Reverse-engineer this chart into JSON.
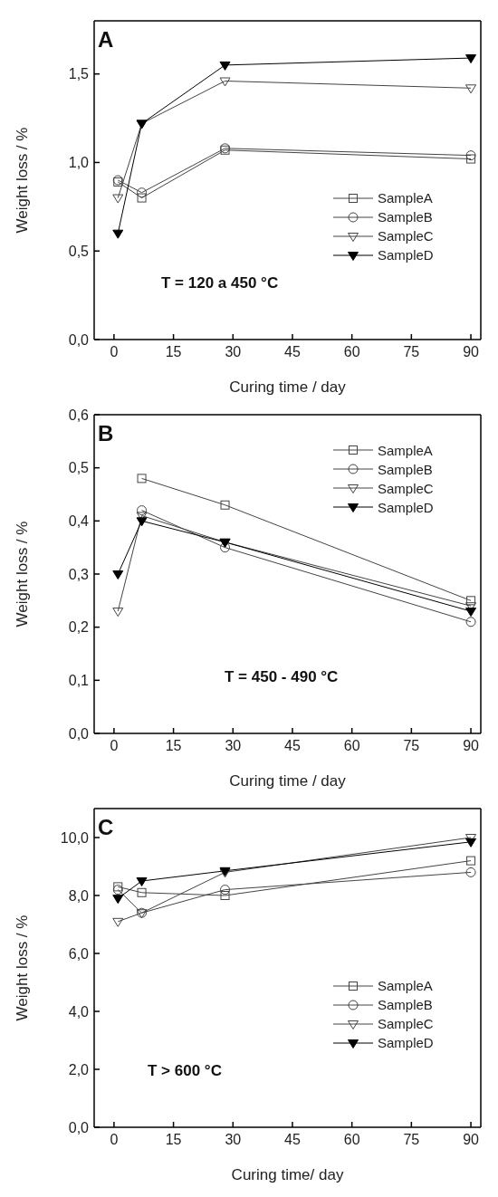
{
  "chart_data": [
    {
      "type": "line",
      "annotations": [
        "A",
        "T = 120 a 450 °C"
      ],
      "xlabel": "Curing time / day",
      "ylabel": "Weight loss /  %",
      "x": [
        1,
        7,
        28,
        90
      ],
      "xlim": [
        -5,
        92.5
      ],
      "xticks": [
        0,
        15,
        30,
        45,
        60,
        75,
        90
      ],
      "ylim": [
        0,
        1.8
      ],
      "yticks": [
        {
          "value": 0,
          "label": "0,0"
        },
        {
          "value": 0.5,
          "label": "0,5"
        },
        {
          "value": 1,
          "label": "1,0"
        },
        {
          "value": 1.5,
          "label": "1,5"
        }
      ],
      "legend": "right",
      "grid": false,
      "line_style": "solid",
      "series": [
        {
          "name": "SampleA",
          "color": "#444444",
          "marker": "square",
          "values": [
            0.89,
            0.8,
            1.07,
            1.02
          ]
        },
        {
          "name": "SampleB",
          "color": "#444444",
          "marker": "circle",
          "values": [
            0.9,
            0.83,
            1.08,
            1.04
          ]
        },
        {
          "name": "SampleC",
          "color": "#444444",
          "marker": "triangle",
          "values": [
            0.8,
            1.22,
            1.46,
            1.42
          ]
        },
        {
          "name": "SampleD",
          "color": "#000000",
          "marker": "triangle",
          "values": [
            0.6,
            1.22,
            1.55,
            1.59
          ]
        }
      ]
    },
    {
      "type": "line",
      "annotations": [
        "B",
        "T = 450 - 490 °C"
      ],
      "xlabel": "Curing time / day",
      "ylabel": "Weight loss /  %",
      "x": [
        1,
        7,
        28,
        90
      ],
      "xlim": [
        -5,
        92.5
      ],
      "xticks": [
        0,
        15,
        30,
        45,
        60,
        75,
        90
      ],
      "ylim": [
        0,
        0.6
      ],
      "yticks": [
        {
          "value": 0,
          "label": "0,0"
        },
        {
          "value": 0.1,
          "label": "0,1"
        },
        {
          "value": 0.2,
          "label": "0,2"
        },
        {
          "value": 0.3,
          "label": "0,3"
        },
        {
          "value": 0.4,
          "label": "0,4"
        },
        {
          "value": 0.5,
          "label": "0,5"
        },
        {
          "value": 0.6,
          "label": "0,6"
        }
      ],
      "legend": "top right",
      "grid": false,
      "line_style": "solid",
      "series": [
        {
          "name": "SampleA",
          "color": "#444444",
          "marker": "square",
          "values": [
            null,
            0.48,
            0.43,
            0.25
          ]
        },
        {
          "name": "SampleB",
          "color": "#444444",
          "marker": "circle",
          "values": [
            null,
            0.42,
            0.35,
            0.21
          ]
        },
        {
          "name": "SampleC",
          "color": "#444444",
          "marker": "triangle",
          "values": [
            0.23,
            0.41,
            0.36,
            0.24
          ]
        },
        {
          "name": "SampleD",
          "color": "#000000",
          "marker": "triangle",
          "values": [
            0.3,
            0.4,
            0.36,
            0.23
          ]
        }
      ]
    },
    {
      "type": "line",
      "annotations": [
        "C",
        "T > 600 °C"
      ],
      "xlabel": "Curing time/ day",
      "ylabel": "Weight loss /  %",
      "x": [
        1,
        7,
        28,
        90
      ],
      "xlim": [
        -5,
        92.5
      ],
      "xticks": [
        0,
        15,
        30,
        45,
        60,
        75,
        90
      ],
      "ylim": [
        0,
        11
      ],
      "yticks": [
        {
          "value": 0,
          "label": "0,0"
        },
        {
          "value": 2,
          "label": "2,0"
        },
        {
          "value": 4,
          "label": "4,0"
        },
        {
          "value": 6,
          "label": "6,0"
        },
        {
          "value": 8,
          "label": "8,0"
        },
        {
          "value": 10,
          "label": "10,0"
        }
      ],
      "legend": "right",
      "grid": false,
      "line_style": "solid",
      "series": [
        {
          "name": "SampleA",
          "color": "#444444",
          "marker": "square",
          "values": [
            8.3,
            8.1,
            8.0,
            9.2
          ]
        },
        {
          "name": "SampleB",
          "color": "#444444",
          "marker": "circle",
          "values": [
            8.2,
            7.4,
            8.2,
            8.8
          ]
        },
        {
          "name": "SampleC",
          "color": "#444444",
          "marker": "triangle",
          "values": [
            7.1,
            7.4,
            8.8,
            10.0
          ]
        },
        {
          "name": "SampleD",
          "color": "#000000",
          "marker": "triangle",
          "values": [
            7.9,
            8.5,
            8.85,
            9.85
          ]
        }
      ]
    }
  ]
}
